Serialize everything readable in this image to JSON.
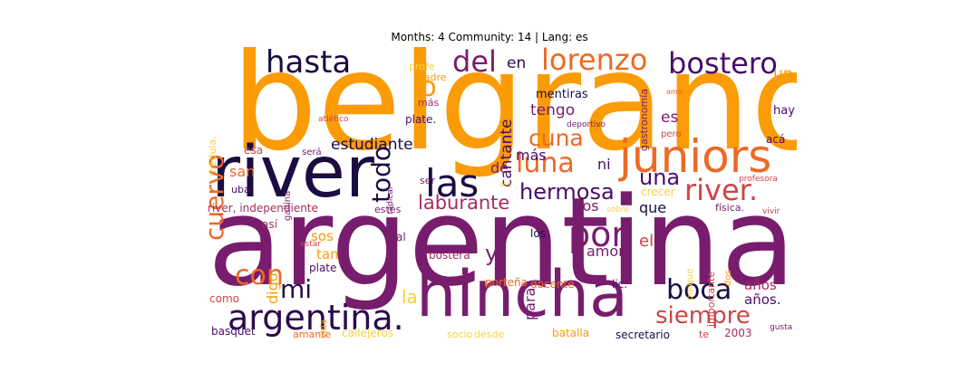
{
  "title": "Months: 4 Community: 14 | Lang: es",
  "palette": {
    "darkest": "#1b0c41",
    "purple_dark": "#4a0c6b",
    "purple": "#781c6d",
    "magenta": "#a52c60",
    "red": "#cf4446",
    "orange_red": "#ed6925",
    "orange": "#fb9b06",
    "yellow": "#f7d13d",
    "pale_yellow": "#fcffa4"
  },
  "words": [
    {
      "text": "belgrano",
      "color": "#fb9b06"
    },
    {
      "text": "argentina",
      "color": "#781c6d"
    },
    {
      "text": "river",
      "color": "#1b0c41"
    },
    {
      "text": "hincha",
      "color": "#781c6d"
    },
    {
      "text": "juniors",
      "color": "#ed6925"
    },
    {
      "text": "argentina.",
      "color": "#2b0a4e"
    },
    {
      "text": "las",
      "color": "#1b0c41"
    },
    {
      "text": "hasta",
      "color": "#1b0c41"
    },
    {
      "text": "lorenzo",
      "color": "#ed6925"
    },
    {
      "text": "bostero",
      "color": "#4a0c6b"
    },
    {
      "text": "del",
      "color": "#781c6d"
    },
    {
      "text": "en",
      "color": "#2b0a4e"
    },
    {
      "text": "lo",
      "color": "#fb9b06"
    },
    {
      "text": "todo",
      "color": "#1b0c41"
    },
    {
      "text": "cuervo",
      "color": "#ed6925"
    },
    {
      "text": "cuna",
      "color": "#ed6925"
    },
    {
      "text": "luna",
      "color": "#ed6925"
    },
    {
      "text": "river.",
      "color": "#cf4446"
    },
    {
      "text": "hermosa",
      "color": "#4a0c6b"
    },
    {
      "text": "una",
      "color": "#4a0c6b"
    },
    {
      "text": "laburante",
      "color": "#a52c60"
    },
    {
      "text": "por",
      "color": "#781c6d"
    },
    {
      "text": "con",
      "color": "#ed6925"
    },
    {
      "text": "mi",
      "color": "#2b0a4e"
    },
    {
      "text": "boca",
      "color": "#1b0c41"
    },
    {
      "text": "siempre",
      "color": "#cf4446"
    },
    {
      "text": "estudiante",
      "color": "#1b0c41"
    },
    {
      "text": "cantante",
      "color": "#4a0c6b"
    },
    {
      "text": "tengo",
      "color": "#781c6d"
    },
    {
      "text": "es",
      "color": "#781c6d"
    },
    {
      "text": "un",
      "color": "#fb9b06"
    },
    {
      "text": "hay",
      "color": "#4a0c6b"
    },
    {
      "text": "mentiras",
      "color": "#1b0c41"
    },
    {
      "text": "gastronomía",
      "color": "#781c6d"
    },
    {
      "text": "plate.",
      "color": "#4a0c6b"
    },
    {
      "text": "madre",
      "color": "#fb9b06"
    },
    {
      "text": "profe",
      "color": "#f7d13d"
    },
    {
      "text": "más",
      "color": "#a52c60"
    },
    {
      "text": "atlético",
      "color": "#cf4446"
    },
    {
      "text": "médula.",
      "color": "#f7d13d"
    },
    {
      "text": "esa",
      "color": "#cf4446"
    },
    {
      "text": "será",
      "color": "#781c6d"
    },
    {
      "text": "gallina",
      "color": "#781c6d"
    },
    {
      "text": "san",
      "color": "#ed6925"
    },
    {
      "text": "uba.",
      "color": "#4a0c6b"
    },
    {
      "text": "de",
      "color": "#781c6d"
    },
    {
      "text": "más",
      "color": "#4a0c6b"
    },
    {
      "text": "ni",
      "color": "#4a0c6b"
    },
    {
      "text": "amo",
      "color": "#ed6925"
    },
    {
      "text": "deportivo",
      "color": "#781c6d"
    },
    {
      "text": "pero",
      "color": "#cf4446"
    },
    {
      "text": "acá",
      "color": "#4a0c6b"
    },
    {
      "text": "profesora",
      "color": "#cf4446"
    },
    {
      "text": "crecer",
      "color": "#f7d13d"
    },
    {
      "text": "radical",
      "color": "#781c6d"
    },
    {
      "text": "soy",
      "color": "#f7d13d"
    },
    {
      "text": "ser",
      "color": "#781c6d"
    },
    {
      "text": "river, independiente",
      "color": "#a52c60"
    },
    {
      "text": "estés",
      "color": "#781c6d"
    },
    {
      "text": "vos",
      "color": "#781c6d"
    },
    {
      "text": "que",
      "color": "#1b0c41"
    },
    {
      "text": "física.",
      "color": "#781c6d"
    },
    {
      "text": "vivir",
      "color": "#cf4446"
    },
    {
      "text": "sobre",
      "color": "#f7d13d"
    },
    {
      "text": "así",
      "color": "#a52c60"
    },
    {
      "text": "estar",
      "color": "#cf4446"
    },
    {
      "text": "al",
      "color": "#781c6d"
    },
    {
      "text": "sos",
      "color": "#fb9b06"
    },
    {
      "text": "tan",
      "color": "#fb9b06"
    },
    {
      "text": "digo",
      "color": "#fb9b06"
    },
    {
      "text": "plate",
      "color": "#4a0c6b"
    },
    {
      "text": "y",
      "color": "#781c6d"
    },
    {
      "text": "los",
      "color": "#1b0c41"
    },
    {
      "text": "bostera",
      "color": "#a52c60"
    },
    {
      "text": "para",
      "color": "#781c6d"
    },
    {
      "text": "el",
      "color": "#cf4446"
    },
    {
      "text": "amor",
      "color": "#781c6d"
    },
    {
      "text": "porque",
      "color": "#f7d13d"
    },
    {
      "text": "dos",
      "color": "#fb9b06"
    },
    {
      "text": "importante",
      "color": "#cf4446"
    },
    {
      "text": "atletico",
      "color": "#781c6d"
    },
    {
      "text": "la",
      "color": "#f7d13d"
    },
    {
      "text": "vida",
      "color": "#fb9b06"
    },
    {
      "text": "como",
      "color": "#cf4446"
    },
    {
      "text": "porteña",
      "color": "#ed6925"
    },
    {
      "text": "docente",
      "color": "#ed6925"
    },
    {
      "text": "lic.",
      "color": "#4a0c6b"
    },
    {
      "text": "años",
      "color": "#a52c60"
    },
    {
      "text": "años.",
      "color": "#4a0c6b"
    },
    {
      "text": "basquet",
      "color": "#4a0c6b"
    },
    {
      "text": "amante",
      "color": "#ed6925"
    },
    {
      "text": "callejeros",
      "color": "#f7d13d"
    },
    {
      "text": "socio",
      "color": "#f7d13d"
    },
    {
      "text": "desde",
      "color": "#f7d13d"
    },
    {
      "text": "batalla",
      "color": "#fb9b06"
    },
    {
      "text": "secretario",
      "color": "#1b0c41"
    },
    {
      "text": "te",
      "color": "#cf4446"
    },
    {
      "text": "2003",
      "color": "#a52c60"
    },
    {
      "text": "gusta",
      "color": "#781c6d"
    }
  ]
}
